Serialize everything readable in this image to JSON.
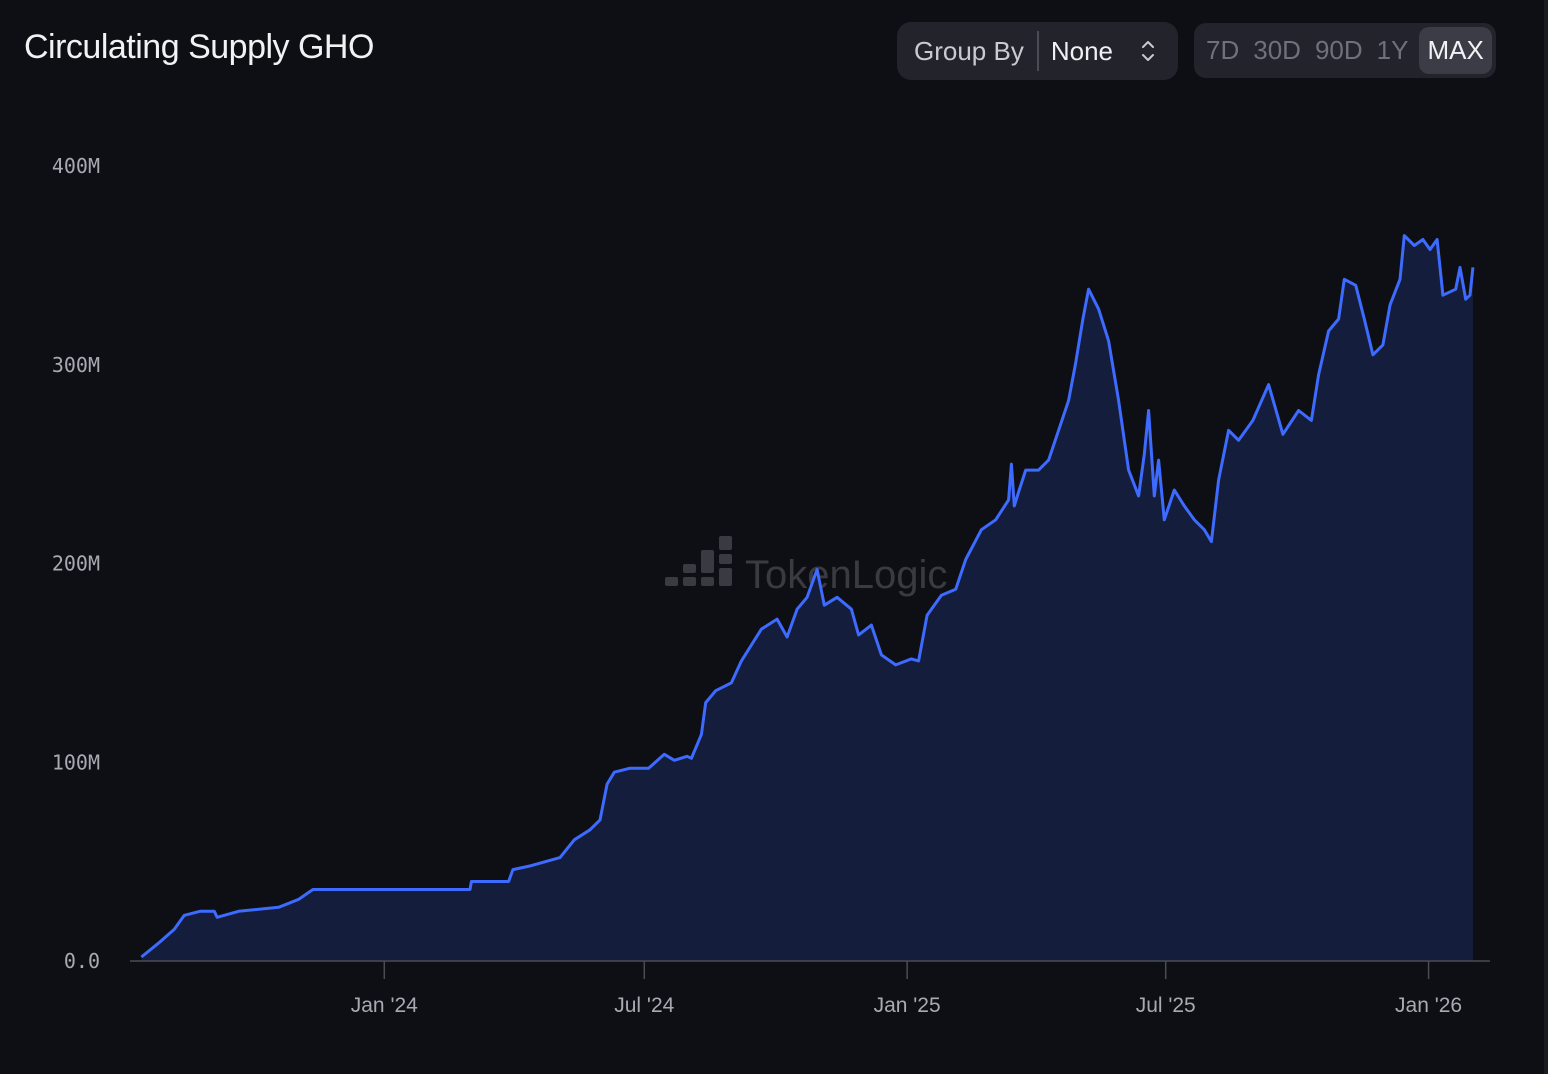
{
  "title": "Circulating Supply GHO",
  "group_by": {
    "label": "Group By",
    "value": "None",
    "icon": "chevron-up-down-icon"
  },
  "ranges": [
    {
      "label": "7D",
      "active": false
    },
    {
      "label": "30D",
      "active": false
    },
    {
      "label": "90D",
      "active": false
    },
    {
      "label": "1Y",
      "active": false
    },
    {
      "label": "MAX",
      "active": true
    }
  ],
  "watermark": "TokenLogic",
  "colors": {
    "line": "#3d6bff",
    "area": "#151d3d",
    "background": "#0e0f14"
  },
  "chart_data": {
    "type": "area",
    "title": "Circulating Supply GHO",
    "xlabel": "",
    "ylabel": "",
    "xlim": [
      "2023-07-07",
      "2026-02-13"
    ],
    "ylim": [
      0,
      400000000
    ],
    "grid": false,
    "yticks": [
      {
        "value": 0,
        "label": "0.0"
      },
      {
        "value": 100000000,
        "label": "100M"
      },
      {
        "value": 200000000,
        "label": "200M"
      },
      {
        "value": 300000000,
        "label": "300M"
      },
      {
        "value": 400000000,
        "label": "400M"
      }
    ],
    "xticks": [
      {
        "date": "2024-01-01",
        "label": "Jan '24"
      },
      {
        "date": "2024-07-01",
        "label": "Jul '24"
      },
      {
        "date": "2025-01-01",
        "label": "Jan '25"
      },
      {
        "date": "2025-07-01",
        "label": "Jul '25"
      },
      {
        "date": "2026-01-01",
        "label": "Jan '26"
      }
    ],
    "unit": "M",
    "points": [
      [
        "2023-07-15",
        2
      ],
      [
        "2023-07-27",
        9
      ],
      [
        "2023-08-07",
        16
      ],
      [
        "2023-08-14",
        23
      ],
      [
        "2023-08-25",
        25
      ],
      [
        "2023-09-04",
        25
      ],
      [
        "2023-09-06",
        22
      ],
      [
        "2023-09-21",
        25
      ],
      [
        "2023-10-19",
        27
      ],
      [
        "2023-11-02",
        31
      ],
      [
        "2023-11-12",
        36
      ],
      [
        "2023-11-23",
        36
      ],
      [
        "2024-03-01",
        36
      ],
      [
        "2024-03-02",
        40
      ],
      [
        "2024-03-28",
        40
      ],
      [
        "2024-03-31",
        46
      ],
      [
        "2024-04-13",
        48
      ],
      [
        "2024-05-03",
        52
      ],
      [
        "2024-05-13",
        61
      ],
      [
        "2024-05-24",
        66
      ],
      [
        "2024-05-31",
        71
      ],
      [
        "2024-06-05",
        89
      ],
      [
        "2024-06-10",
        95
      ],
      [
        "2024-06-21",
        97
      ],
      [
        "2024-07-04",
        97
      ],
      [
        "2024-07-15",
        104
      ],
      [
        "2024-07-22",
        101
      ],
      [
        "2024-07-31",
        103
      ],
      [
        "2024-08-03",
        102
      ],
      [
        "2024-08-10",
        114
      ],
      [
        "2024-08-13",
        130
      ],
      [
        "2024-08-20",
        136
      ],
      [
        "2024-08-31",
        140
      ],
      [
        "2024-09-07",
        151
      ],
      [
        "2024-09-14",
        159
      ],
      [
        "2024-09-21",
        167
      ],
      [
        "2024-10-02",
        172
      ],
      [
        "2024-10-09",
        163
      ],
      [
        "2024-10-16",
        177
      ],
      [
        "2024-10-23",
        183
      ],
      [
        "2024-10-30",
        197
      ],
      [
        "2024-11-04",
        179
      ],
      [
        "2024-11-13",
        183
      ],
      [
        "2024-11-23",
        177
      ],
      [
        "2024-11-28",
        164
      ],
      [
        "2024-12-07",
        169
      ],
      [
        "2024-12-14",
        154
      ],
      [
        "2024-12-24",
        149
      ],
      [
        "2025-01-04",
        152
      ],
      [
        "2025-01-09",
        151
      ],
      [
        "2025-01-15",
        174
      ],
      [
        "2025-01-25",
        184
      ],
      [
        "2025-02-04",
        187
      ],
      [
        "2025-02-11",
        202
      ],
      [
        "2025-02-22",
        217
      ],
      [
        "2025-03-04",
        222
      ],
      [
        "2025-03-13",
        232
      ],
      [
        "2025-03-15",
        250
      ],
      [
        "2025-03-17",
        229
      ],
      [
        "2025-03-20",
        236
      ],
      [
        "2025-03-25",
        247
      ],
      [
        "2025-04-03",
        247
      ],
      [
        "2025-04-10",
        252
      ],
      [
        "2025-04-17",
        267
      ],
      [
        "2025-04-24",
        282
      ],
      [
        "2025-04-29",
        301
      ],
      [
        "2025-05-04",
        323
      ],
      [
        "2025-05-08",
        338
      ],
      [
        "2025-05-15",
        328
      ],
      [
        "2025-05-22",
        312
      ],
      [
        "2025-05-29",
        282
      ],
      [
        "2025-06-05",
        247
      ],
      [
        "2025-06-12",
        234
      ],
      [
        "2025-06-16",
        255
      ],
      [
        "2025-06-19",
        277
      ],
      [
        "2025-06-23",
        234
      ],
      [
        "2025-06-26",
        252
      ],
      [
        "2025-06-30",
        222
      ],
      [
        "2025-07-07",
        237
      ],
      [
        "2025-07-14",
        229
      ],
      [
        "2025-07-21",
        222
      ],
      [
        "2025-07-28",
        217
      ],
      [
        "2025-08-02",
        211
      ],
      [
        "2025-08-07",
        242
      ],
      [
        "2025-08-14",
        267
      ],
      [
        "2025-08-21",
        262
      ],
      [
        "2025-08-31",
        272
      ],
      [
        "2025-09-11",
        290
      ],
      [
        "2025-09-21",
        265
      ],
      [
        "2025-10-02",
        277
      ],
      [
        "2025-10-11",
        272
      ],
      [
        "2025-10-16",
        295
      ],
      [
        "2025-10-23",
        317
      ],
      [
        "2025-10-30",
        323
      ],
      [
        "2025-11-03",
        343
      ],
      [
        "2025-11-11",
        340
      ],
      [
        "2025-11-17",
        323
      ],
      [
        "2025-11-23",
        305
      ],
      [
        "2025-11-30",
        310
      ],
      [
        "2025-12-05",
        330
      ],
      [
        "2025-12-12",
        343
      ],
      [
        "2025-12-15",
        365
      ],
      [
        "2025-12-22",
        360
      ],
      [
        "2025-12-28",
        363
      ],
      [
        "2026-01-02",
        358
      ],
      [
        "2026-01-07",
        363
      ],
      [
        "2026-01-11",
        335
      ],
      [
        "2026-01-20",
        338
      ],
      [
        "2026-01-23",
        349
      ],
      [
        "2026-01-27",
        333
      ],
      [
        "2026-01-30",
        335
      ],
      [
        "2026-02-01",
        349
      ]
    ]
  }
}
